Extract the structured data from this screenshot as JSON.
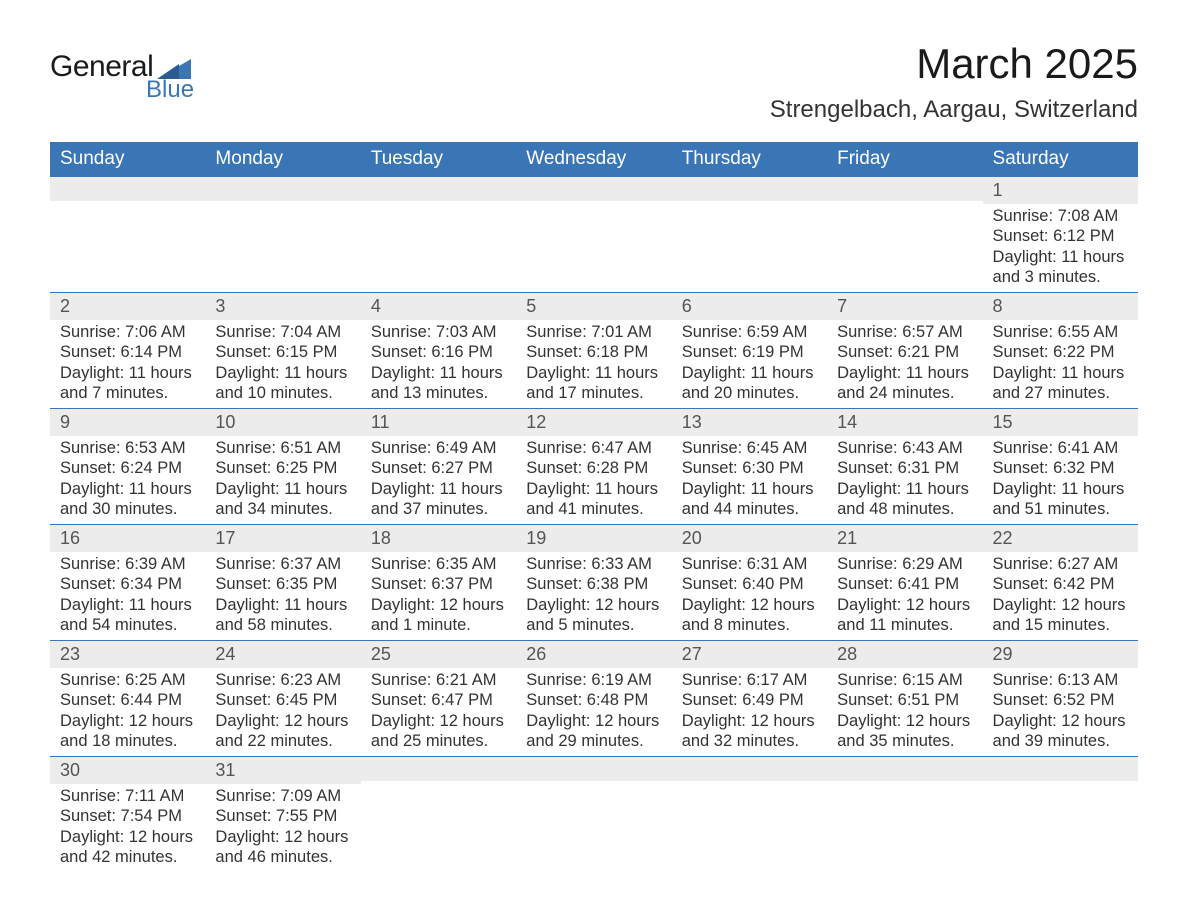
{
  "logo": {
    "text1": "General",
    "text2": "Blue"
  },
  "title": "March 2025",
  "location": "Strengelbach, Aargau, Switzerland",
  "colors": {
    "header_bg": "#3a76b5",
    "header_text": "#ffffff",
    "daynum_bg": "#ececec",
    "border": "#3a76b5",
    "body_text": "#333333"
  },
  "weekdays": [
    "Sunday",
    "Monday",
    "Tuesday",
    "Wednesday",
    "Thursday",
    "Friday",
    "Saturday"
  ],
  "weeks": [
    [
      {
        "n": "",
        "sr": "",
        "ss": "",
        "dl": ""
      },
      {
        "n": "",
        "sr": "",
        "ss": "",
        "dl": ""
      },
      {
        "n": "",
        "sr": "",
        "ss": "",
        "dl": ""
      },
      {
        "n": "",
        "sr": "",
        "ss": "",
        "dl": ""
      },
      {
        "n": "",
        "sr": "",
        "ss": "",
        "dl": ""
      },
      {
        "n": "",
        "sr": "",
        "ss": "",
        "dl": ""
      },
      {
        "n": "1",
        "sr": "Sunrise: 7:08 AM",
        "ss": "Sunset: 6:12 PM",
        "dl": "Daylight: 11 hours and 3 minutes."
      }
    ],
    [
      {
        "n": "2",
        "sr": "Sunrise: 7:06 AM",
        "ss": "Sunset: 6:14 PM",
        "dl": "Daylight: 11 hours and 7 minutes."
      },
      {
        "n": "3",
        "sr": "Sunrise: 7:04 AM",
        "ss": "Sunset: 6:15 PM",
        "dl": "Daylight: 11 hours and 10 minutes."
      },
      {
        "n": "4",
        "sr": "Sunrise: 7:03 AM",
        "ss": "Sunset: 6:16 PM",
        "dl": "Daylight: 11 hours and 13 minutes."
      },
      {
        "n": "5",
        "sr": "Sunrise: 7:01 AM",
        "ss": "Sunset: 6:18 PM",
        "dl": "Daylight: 11 hours and 17 minutes."
      },
      {
        "n": "6",
        "sr": "Sunrise: 6:59 AM",
        "ss": "Sunset: 6:19 PM",
        "dl": "Daylight: 11 hours and 20 minutes."
      },
      {
        "n": "7",
        "sr": "Sunrise: 6:57 AM",
        "ss": "Sunset: 6:21 PM",
        "dl": "Daylight: 11 hours and 24 minutes."
      },
      {
        "n": "8",
        "sr": "Sunrise: 6:55 AM",
        "ss": "Sunset: 6:22 PM",
        "dl": "Daylight: 11 hours and 27 minutes."
      }
    ],
    [
      {
        "n": "9",
        "sr": "Sunrise: 6:53 AM",
        "ss": "Sunset: 6:24 PM",
        "dl": "Daylight: 11 hours and 30 minutes."
      },
      {
        "n": "10",
        "sr": "Sunrise: 6:51 AM",
        "ss": "Sunset: 6:25 PM",
        "dl": "Daylight: 11 hours and 34 minutes."
      },
      {
        "n": "11",
        "sr": "Sunrise: 6:49 AM",
        "ss": "Sunset: 6:27 PM",
        "dl": "Daylight: 11 hours and 37 minutes."
      },
      {
        "n": "12",
        "sr": "Sunrise: 6:47 AM",
        "ss": "Sunset: 6:28 PM",
        "dl": "Daylight: 11 hours and 41 minutes."
      },
      {
        "n": "13",
        "sr": "Sunrise: 6:45 AM",
        "ss": "Sunset: 6:30 PM",
        "dl": "Daylight: 11 hours and 44 minutes."
      },
      {
        "n": "14",
        "sr": "Sunrise: 6:43 AM",
        "ss": "Sunset: 6:31 PM",
        "dl": "Daylight: 11 hours and 48 minutes."
      },
      {
        "n": "15",
        "sr": "Sunrise: 6:41 AM",
        "ss": "Sunset: 6:32 PM",
        "dl": "Daylight: 11 hours and 51 minutes."
      }
    ],
    [
      {
        "n": "16",
        "sr": "Sunrise: 6:39 AM",
        "ss": "Sunset: 6:34 PM",
        "dl": "Daylight: 11 hours and 54 minutes."
      },
      {
        "n": "17",
        "sr": "Sunrise: 6:37 AM",
        "ss": "Sunset: 6:35 PM",
        "dl": "Daylight: 11 hours and 58 minutes."
      },
      {
        "n": "18",
        "sr": "Sunrise: 6:35 AM",
        "ss": "Sunset: 6:37 PM",
        "dl": "Daylight: 12 hours and 1 minute."
      },
      {
        "n": "19",
        "sr": "Sunrise: 6:33 AM",
        "ss": "Sunset: 6:38 PM",
        "dl": "Daylight: 12 hours and 5 minutes."
      },
      {
        "n": "20",
        "sr": "Sunrise: 6:31 AM",
        "ss": "Sunset: 6:40 PM",
        "dl": "Daylight: 12 hours and 8 minutes."
      },
      {
        "n": "21",
        "sr": "Sunrise: 6:29 AM",
        "ss": "Sunset: 6:41 PM",
        "dl": "Daylight: 12 hours and 11 minutes."
      },
      {
        "n": "22",
        "sr": "Sunrise: 6:27 AM",
        "ss": "Sunset: 6:42 PM",
        "dl": "Daylight: 12 hours and 15 minutes."
      }
    ],
    [
      {
        "n": "23",
        "sr": "Sunrise: 6:25 AM",
        "ss": "Sunset: 6:44 PM",
        "dl": "Daylight: 12 hours and 18 minutes."
      },
      {
        "n": "24",
        "sr": "Sunrise: 6:23 AM",
        "ss": "Sunset: 6:45 PM",
        "dl": "Daylight: 12 hours and 22 minutes."
      },
      {
        "n": "25",
        "sr": "Sunrise: 6:21 AM",
        "ss": "Sunset: 6:47 PM",
        "dl": "Daylight: 12 hours and 25 minutes."
      },
      {
        "n": "26",
        "sr": "Sunrise: 6:19 AM",
        "ss": "Sunset: 6:48 PM",
        "dl": "Daylight: 12 hours and 29 minutes."
      },
      {
        "n": "27",
        "sr": "Sunrise: 6:17 AM",
        "ss": "Sunset: 6:49 PM",
        "dl": "Daylight: 12 hours and 32 minutes."
      },
      {
        "n": "28",
        "sr": "Sunrise: 6:15 AM",
        "ss": "Sunset: 6:51 PM",
        "dl": "Daylight: 12 hours and 35 minutes."
      },
      {
        "n": "29",
        "sr": "Sunrise: 6:13 AM",
        "ss": "Sunset: 6:52 PM",
        "dl": "Daylight: 12 hours and 39 minutes."
      }
    ],
    [
      {
        "n": "30",
        "sr": "Sunrise: 7:11 AM",
        "ss": "Sunset: 7:54 PM",
        "dl": "Daylight: 12 hours and 42 minutes."
      },
      {
        "n": "31",
        "sr": "Sunrise: 7:09 AM",
        "ss": "Sunset: 7:55 PM",
        "dl": "Daylight: 12 hours and 46 minutes."
      },
      {
        "n": "",
        "sr": "",
        "ss": "",
        "dl": ""
      },
      {
        "n": "",
        "sr": "",
        "ss": "",
        "dl": ""
      },
      {
        "n": "",
        "sr": "",
        "ss": "",
        "dl": ""
      },
      {
        "n": "",
        "sr": "",
        "ss": "",
        "dl": ""
      },
      {
        "n": "",
        "sr": "",
        "ss": "",
        "dl": ""
      }
    ]
  ]
}
